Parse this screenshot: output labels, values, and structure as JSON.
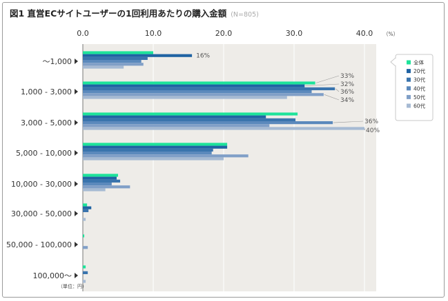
{
  "title": "図1 直営ECサイトユーザーの1回利用あたりの購入金額",
  "sample_note": "(N=805)",
  "unit_note": "（単位：円）",
  "chart_data": {
    "type": "bar",
    "orientation": "horizontal",
    "title": "図1 直営ECサイトユーザーの1回利用あたりの購入金額",
    "xlabel": "（%）",
    "ylabel": "",
    "xlim": [
      0,
      42
    ],
    "x_ticks": [
      "0.0",
      "10.0",
      "20.0",
      "30.0",
      "40.0"
    ],
    "x_unit": "（%）",
    "grid": true,
    "legend_position": "right",
    "categories": [
      "～1,000",
      "1,000 - 3,000",
      "3,000 - 5,000",
      "5,000 - 10,000",
      "10,000 - 30,000",
      "30,000 - 50,000",
      "50,000 - 100,000",
      "100,000～"
    ],
    "series": [
      {
        "name": "全体",
        "color": "#1de39a",
        "values": [
          10.0,
          33.0,
          30.5,
          20.5,
          5.0,
          0.6,
          0.2,
          0.4
        ]
      },
      {
        "name": "20代",
        "color": "#2063a3",
        "values": [
          15.5,
          31.5,
          26.0,
          20.5,
          4.8,
          1.2,
          0.0,
          0.0
        ]
      },
      {
        "name": "30代",
        "color": "#3a74ad",
        "values": [
          9.2,
          35.8,
          30.2,
          18.5,
          5.3,
          0.8,
          0.0,
          0.7
        ]
      },
      {
        "name": "40代",
        "color": "#5b89bc",
        "values": [
          8.3,
          32.5,
          35.5,
          18.3,
          4.1,
          0.0,
          0.0,
          0.0
        ]
      },
      {
        "name": "50代",
        "color": "#809fc7",
        "values": [
          8.6,
          34.2,
          26.5,
          23.5,
          6.7,
          0.0,
          0.7,
          0.0
        ]
      },
      {
        "name": "60代",
        "color": "#a6bad3",
        "values": [
          5.8,
          29.0,
          40.0,
          20.0,
          3.2,
          0.4,
          0.0,
          0.4
        ]
      }
    ],
    "annotations": [
      {
        "category": "～1,000",
        "series": "20代",
        "text": "16%"
      },
      {
        "category": "1,000 - 3,000",
        "series": "全体",
        "text": "33%"
      },
      {
        "category": "1,000 - 3,000",
        "series": "20代",
        "text": "32%"
      },
      {
        "category": "1,000 - 3,000",
        "series": "30代",
        "text": "36%"
      },
      {
        "category": "1,000 - 3,000",
        "series": "50代",
        "text": "34%"
      },
      {
        "category": "3,000 - 5,000",
        "series": "40代",
        "text": "36%"
      },
      {
        "category": "3,000 - 5,000",
        "series": "60代",
        "text": "40%"
      }
    ]
  }
}
